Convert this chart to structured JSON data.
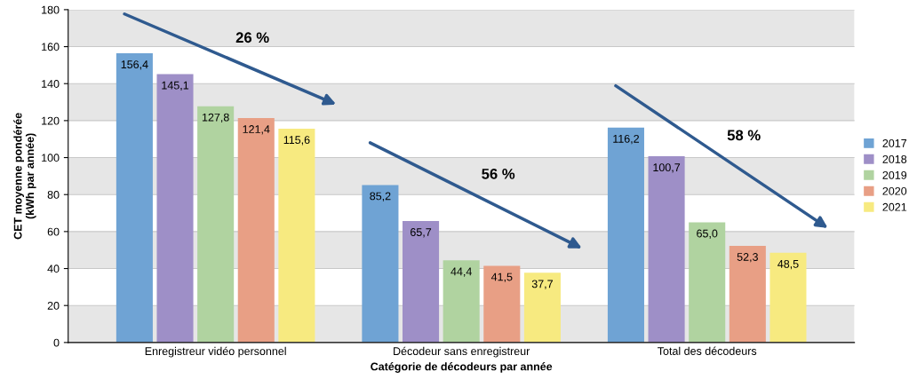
{
  "chart_data": {
    "type": "bar",
    "xlabel": "Catégorie de décodeurs par année",
    "ylabel": "CET moyenne pondérée\n(kWh par année)",
    "categories": [
      "Enregistreur vidéo personnel",
      "Décodeur sans enregistreur",
      "Total des décodeurs"
    ],
    "series": [
      {
        "name": "2017",
        "color": "#6fa3d4",
        "values": [
          156.4,
          85.2,
          116.2
        ],
        "value_labels": [
          "156,4",
          "85,2",
          "116,2"
        ]
      },
      {
        "name": "2018",
        "color": "#9e8fc7",
        "values": [
          145.1,
          65.7,
          100.7
        ],
        "value_labels": [
          "145,1",
          "65,7",
          "100,7"
        ]
      },
      {
        "name": "2019",
        "color": "#b0d3a0",
        "values": [
          127.8,
          44.4,
          65.0
        ],
        "value_labels": [
          "127,8",
          "44,4",
          "65,0"
        ]
      },
      {
        "name": "2020",
        "color": "#e89f85",
        "values": [
          121.4,
          41.5,
          52.3
        ],
        "value_labels": [
          "121,4",
          "41,5",
          "52,3"
        ]
      },
      {
        "name": "2021",
        "color": "#f7ea80",
        "values": [
          115.6,
          37.7,
          48.5
        ],
        "value_labels": [
          "115,6",
          "37,7",
          "48,5"
        ]
      }
    ],
    "annotations": [
      "26 %",
      "56 %",
      "58 %"
    ],
    "ylim": [
      0,
      180
    ],
    "yticks": [
      0,
      20,
      40,
      60,
      80,
      100,
      120,
      140,
      160,
      180
    ],
    "grid": "y",
    "legend": "right"
  }
}
